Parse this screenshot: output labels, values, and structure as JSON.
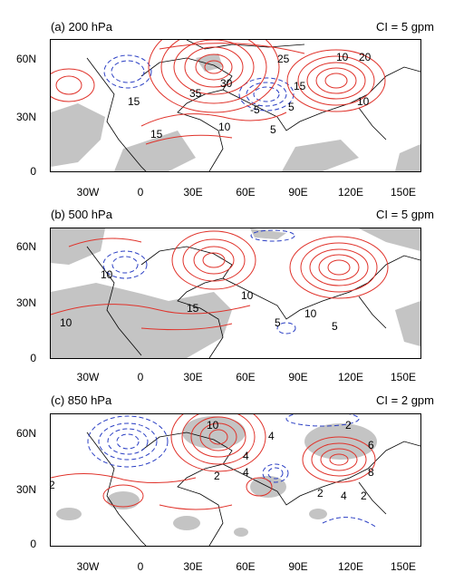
{
  "panels": [
    {
      "title": "(a) 200 hPa",
      "ci": "CI = 5 gpm",
      "y_ticks": [
        "60N",
        "30N",
        "0"
      ],
      "x_ticks": [
        "30W",
        "0",
        "30E",
        "60E",
        "90E",
        "120E",
        "150E"
      ],
      "contour_labels": [
        "25",
        "20",
        "10",
        "15",
        "35",
        "30",
        "-5",
        "15",
        "5",
        "10",
        "15",
        "10",
        "5"
      ]
    },
    {
      "title": "(b) 500 hPa",
      "ci": "CI = 5 gpm",
      "y_ticks": [
        "60N",
        "30N",
        "0"
      ],
      "x_ticks": [
        "30W",
        "0",
        "30E",
        "60E",
        "90E",
        "120E",
        "150E"
      ],
      "contour_labels": [
        "10",
        "10",
        "15",
        "10",
        "5",
        "10",
        "5"
      ]
    },
    {
      "title": "(c) 850 hPa",
      "ci": "CI = 2 gpm",
      "y_ticks": [
        "60N",
        "30N",
        "0"
      ],
      "x_ticks": [
        "30W",
        "0",
        "30E",
        "60E",
        "90E",
        "120E",
        "150E"
      ],
      "contour_labels": [
        "10",
        "2",
        "4",
        "6",
        "4",
        "2",
        "4",
        "2",
        "2",
        "2",
        "4",
        "8"
      ]
    }
  ],
  "colors": {
    "positive_contour": "#e0322a",
    "negative_contour": "#2b3fc4",
    "shading": "#c4c4c4",
    "coastline": "#000000"
  }
}
